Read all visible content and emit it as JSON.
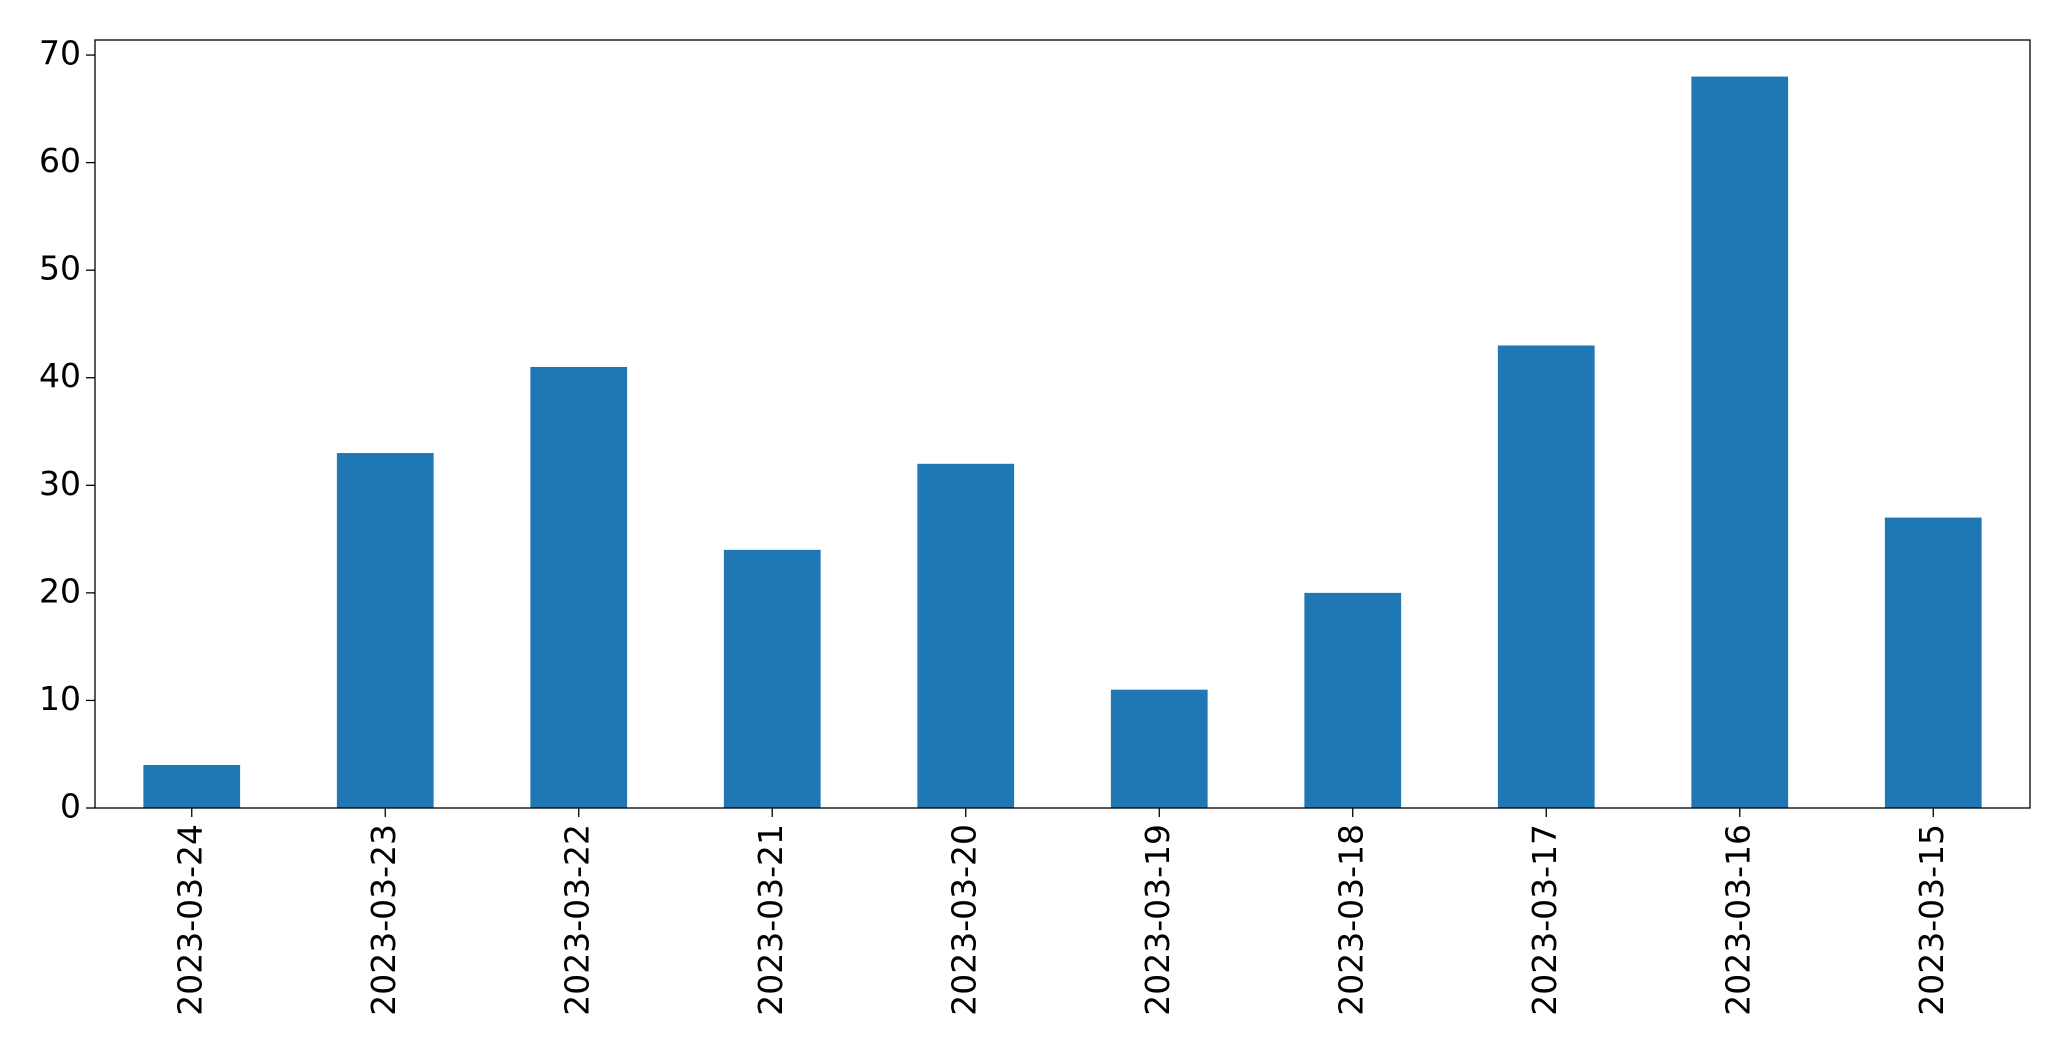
{
  "chart_data": {
    "type": "bar",
    "categories": [
      "2023-03-24",
      "2023-03-23",
      "2023-03-22",
      "2023-03-21",
      "2023-03-20",
      "2023-03-19",
      "2023-03-18",
      "2023-03-17",
      "2023-03-16",
      "2023-03-15"
    ],
    "values": [
      4,
      33,
      41,
      24,
      32,
      11,
      20,
      43,
      68,
      27
    ],
    "color": "#1f77b4",
    "ylim": [
      0,
      71.4
    ],
    "yticks": [
      0,
      10,
      20,
      30,
      40,
      50,
      60,
      70
    ],
    "grid": false
  }
}
